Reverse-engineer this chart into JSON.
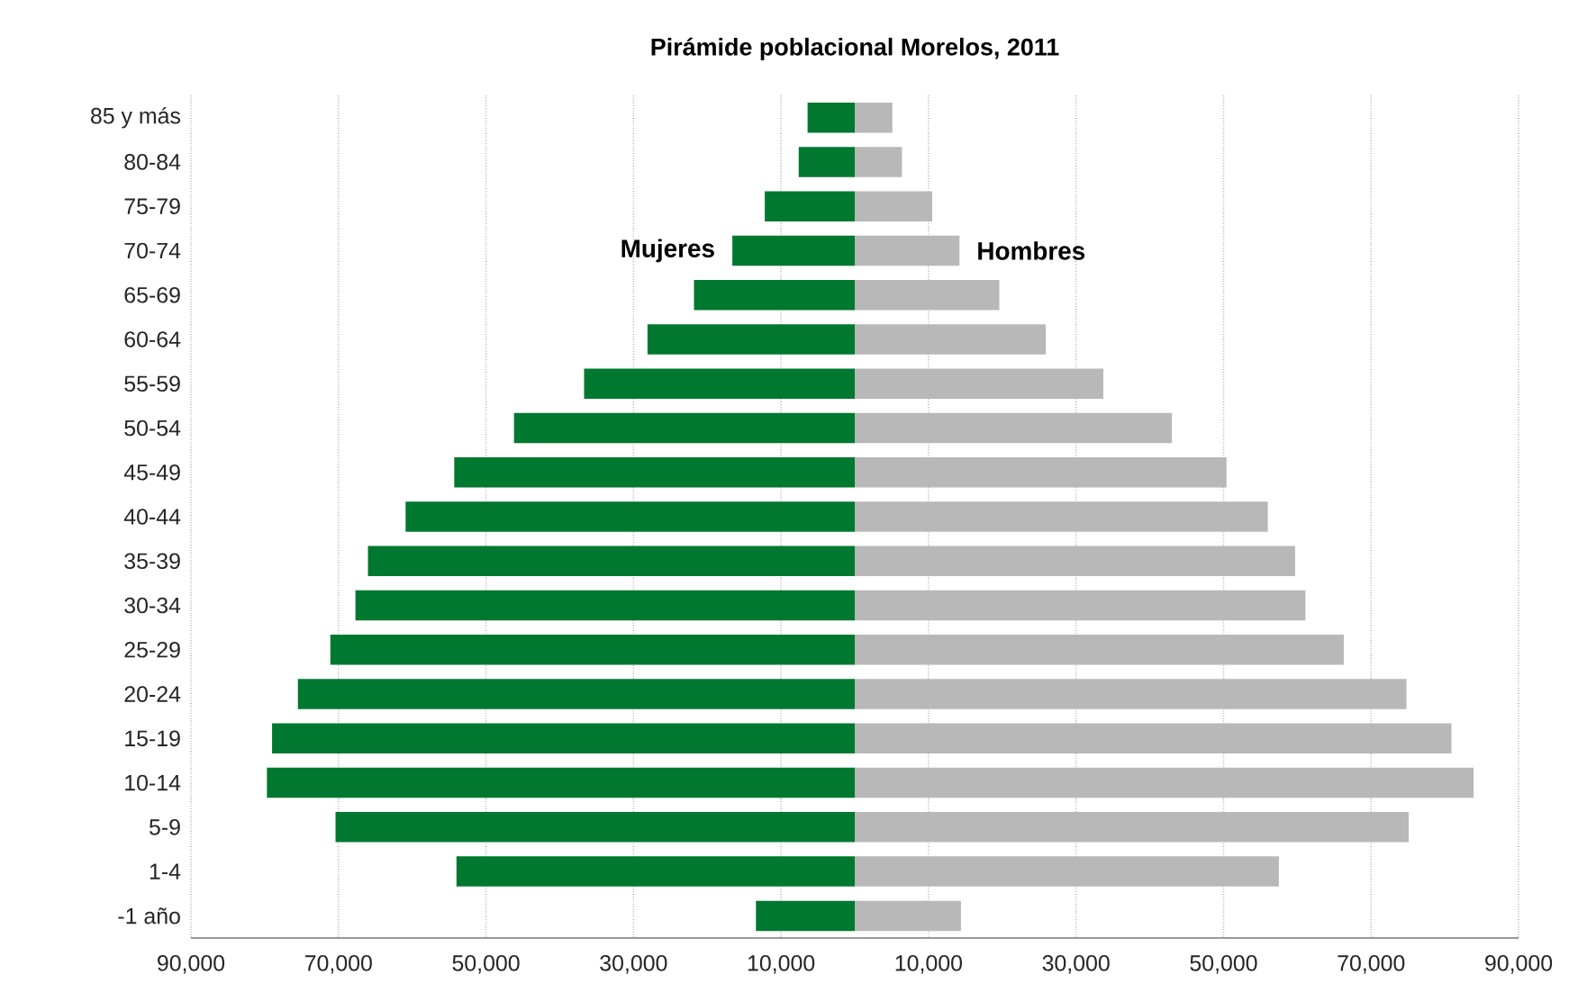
{
  "chart_data": {
    "type": "bar",
    "orientation": "horizontal",
    "title": "Pirámide poblacional Morelos, 2011",
    "categories": [
      "85 y más",
      "80-84",
      "75-79",
      "70-74",
      "65-69",
      "60-64",
      "55-59",
      "50-54",
      "45-49",
      "40-44",
      "35-39",
      "30-34",
      "25-29",
      "20-24",
      "15-19",
      "10-14",
      "5-9",
      "1-4",
      "-1 año"
    ],
    "series": [
      {
        "name": "Mujeres",
        "color": "#00782f",
        "values": [
          -6400,
          -7600,
          -12200,
          -16600,
          -21800,
          -28100,
          -36700,
          -46200,
          -54300,
          -60900,
          -66000,
          -67700,
          -71100,
          -75500,
          -79000,
          -79700,
          -70400,
          -54000,
          -13400
        ]
      },
      {
        "name": "Hombres",
        "color": "#b7b8b7",
        "values": [
          5100,
          6400,
          10500,
          14200,
          19600,
          25900,
          33700,
          43000,
          50400,
          56000,
          59700,
          61100,
          66300,
          74800,
          80900,
          83900,
          75100,
          57500,
          14400
        ]
      }
    ],
    "xlim": [
      -90000,
      90000
    ],
    "xticks": [
      {
        "value": -90000,
        "label": "90,000"
      },
      {
        "value": -70000,
        "label": "70,000"
      },
      {
        "value": -50000,
        "label": "50,000"
      },
      {
        "value": -30000,
        "label": "30,000"
      },
      {
        "value": -10000,
        "label": "10,000"
      },
      {
        "value": 10000,
        "label": "10,000"
      },
      {
        "value": 30000,
        "label": "30,000"
      },
      {
        "value": 50000,
        "label": "50,000"
      },
      {
        "value": 70000,
        "label": "70,000"
      },
      {
        "value": 90000,
        "label": "90,000"
      }
    ],
    "grid": "x",
    "legend": false,
    "stacked": true
  }
}
